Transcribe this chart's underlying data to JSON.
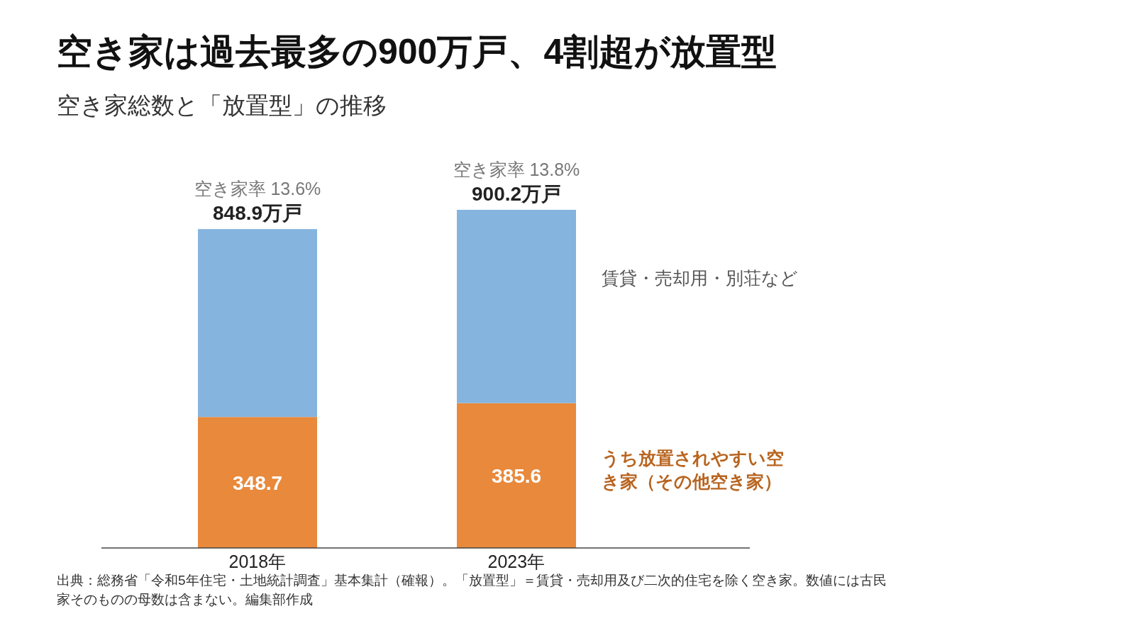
{
  "chart_data": {
    "type": "bar",
    "stacked": true,
    "title": "空き家は過去最多の900万戸、4割超が放置型",
    "subtitle": "空き家総数と「放置型」の推移",
    "categories": [
      "2018年",
      "2023年"
    ],
    "series": [
      {
        "name": "うち放置されやすい空き家（その他空き家）",
        "color": "#e8893b",
        "values": [
          348.7,
          385.6
        ],
        "value_labels": [
          "348.7",
          "385.6"
        ]
      },
      {
        "name": "賃貸・売却用・別荘など",
        "color": "#85b4de",
        "values": [
          500.2,
          514.6
        ]
      }
    ],
    "totals": [
      "848.9万戸",
      "900.2万戸"
    ],
    "annotations": [
      "空き家率 13.6%",
      "空き家率 13.8%",
      "出典：総務省「令和5年住宅・土地統計調査」基本集計（確報）。「放置型」＝賃貸・売却用及び二次的住宅を除く空き家。数値には古民家そのものの母数は含まない。編集部作成"
    ]
  }
}
